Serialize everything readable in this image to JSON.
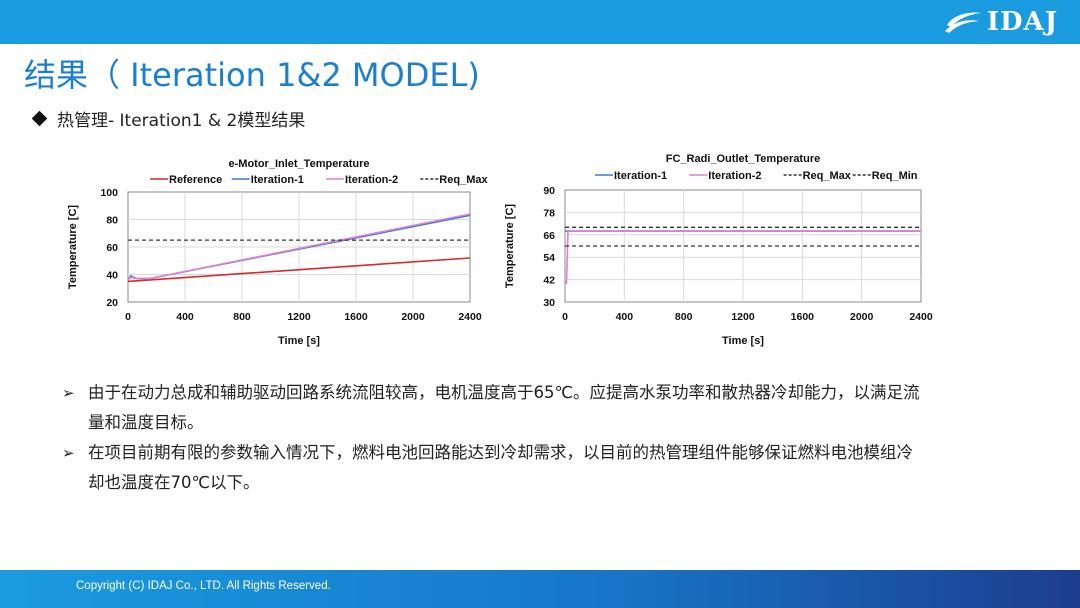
{
  "header": {
    "logo_text": "IDAJ",
    "colors": {
      "bar": "#1a9be0",
      "title": "#1a7fd0"
    }
  },
  "page_title": "结果（ Iteration 1&2 MODEL)",
  "subtitle": "热管理- Iteration1 & 2模型结果",
  "chart_data": [
    {
      "type": "line",
      "title": "e-Motor_Inlet_Temperature",
      "xlabel": "Time [s]",
      "ylabel": "Temperature [C]",
      "xlim": [
        0,
        2400
      ],
      "ylim": [
        20,
        100
      ],
      "x_ticks": [
        "0",
        "400",
        "800",
        "1200",
        "1600",
        "2000",
        "2400"
      ],
      "y_ticks": [
        "20",
        "40",
        "60",
        "80",
        "100"
      ],
      "grid": true,
      "legend": "top",
      "series": [
        {
          "name": "Reference",
          "color": "#d9292b",
          "style": "solid",
          "x": [
            0,
            2400
          ],
          "y": [
            35,
            52
          ]
        },
        {
          "name": "Iteration-1",
          "color": "#3a7bd5",
          "style": "solid",
          "x": [
            0,
            20,
            60,
            150,
            2400
          ],
          "y": [
            36,
            39,
            37,
            37,
            83
          ]
        },
        {
          "name": "Iteration-2",
          "color": "#e57fcf",
          "style": "solid",
          "x": [
            0,
            20,
            60,
            150,
            2400
          ],
          "y": [
            36,
            38,
            37,
            37,
            84
          ]
        },
        {
          "name": "Req_Max",
          "color": "#333333",
          "style": "dashed",
          "x": [
            0,
            2400
          ],
          "y": [
            65,
            65
          ]
        }
      ]
    },
    {
      "type": "line",
      "title": "FC_Radi_Outlet_Temperature",
      "xlabel": "Time [s]",
      "ylabel": "Temperature [C]",
      "xlim": [
        0,
        2400
      ],
      "ylim": [
        30,
        90
      ],
      "x_ticks": [
        "0",
        "400",
        "800",
        "1200",
        "1600",
        "2000",
        "2400"
      ],
      "y_ticks": [
        "30",
        "42",
        "54",
        "66",
        "78",
        "90"
      ],
      "grid": true,
      "legend": "top",
      "series": [
        {
          "name": "Iteration-1",
          "color": "#3a7bd5",
          "style": "solid",
          "x": [
            0,
            2400
          ],
          "y": [
            68,
            68
          ]
        },
        {
          "name": "Iteration-2",
          "color": "#e57fcf",
          "style": "solid",
          "x": [
            0,
            10,
            20,
            2400
          ],
          "y": [
            40,
            40,
            68,
            68
          ]
        },
        {
          "name": "Req_Max",
          "color": "#333333",
          "style": "dashed",
          "x": [
            0,
            2400
          ],
          "y": [
            70,
            70
          ]
        },
        {
          "name": "Req_Min",
          "color": "#333333",
          "style": "dashed",
          "x": [
            0,
            2400
          ],
          "y": [
            60,
            60
          ]
        }
      ]
    }
  ],
  "bullets": [
    {
      "line1": "由于在动力总成和辅助驱动回路系统流阻较高，电机温度高于65℃。应提高水泵功率和散热器冷却能力，以满足流",
      "line2": "量和温度目标。"
    },
    {
      "line1": "在项目前期有限的参数输入情况下，燃料电池回路能达到冷却需求，以目前的热管理组件能够保证燃料电池模组冷",
      "line2": "却也温度在70℃以下。"
    }
  ],
  "footer": {
    "copyright": "Copyright (C)  IDAJ Co., LTD. All Rights Reserved."
  }
}
